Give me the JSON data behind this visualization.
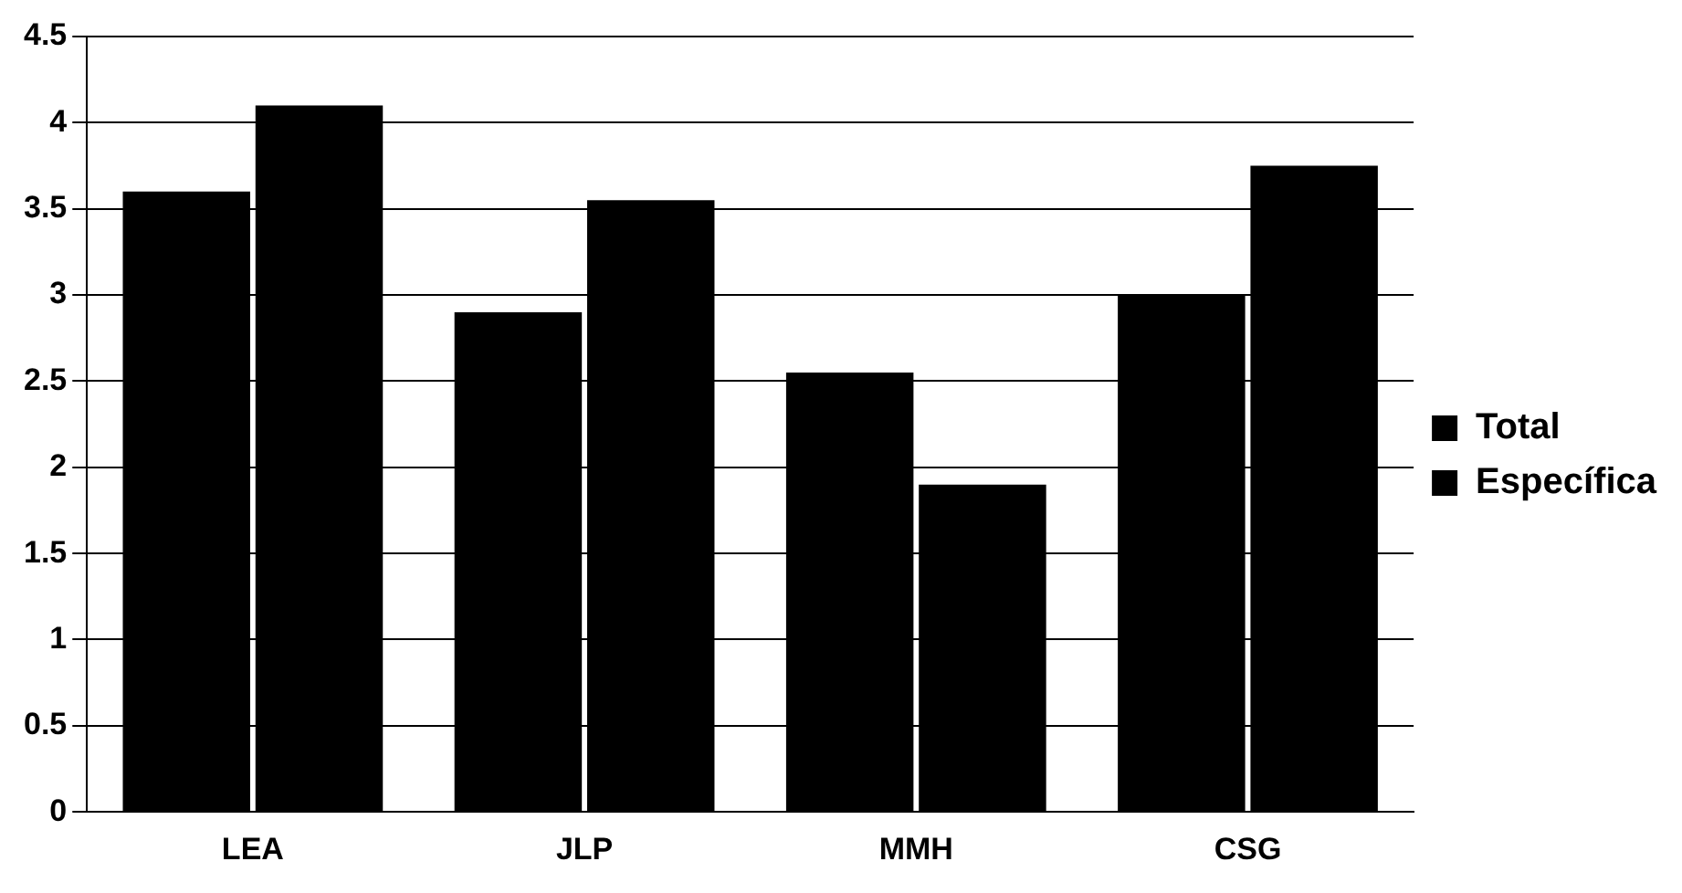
{
  "chart_data": {
    "type": "bar",
    "categories": [
      "LEA",
      "JLP",
      "MMH",
      "CSG"
    ],
    "series": [
      {
        "name": "Total",
        "color": "#000000",
        "values": [
          3.6,
          2.9,
          2.55,
          3.0
        ]
      },
      {
        "name": "Específica",
        "color": "#000000",
        "values": [
          4.1,
          3.55,
          1.9,
          3.75
        ]
      }
    ],
    "ylim": [
      0,
      4.5
    ],
    "yticks": [
      0,
      0.5,
      1,
      1.5,
      2,
      2.5,
      3,
      3.5,
      4,
      4.5
    ],
    "grid": "y",
    "legend": "right"
  }
}
